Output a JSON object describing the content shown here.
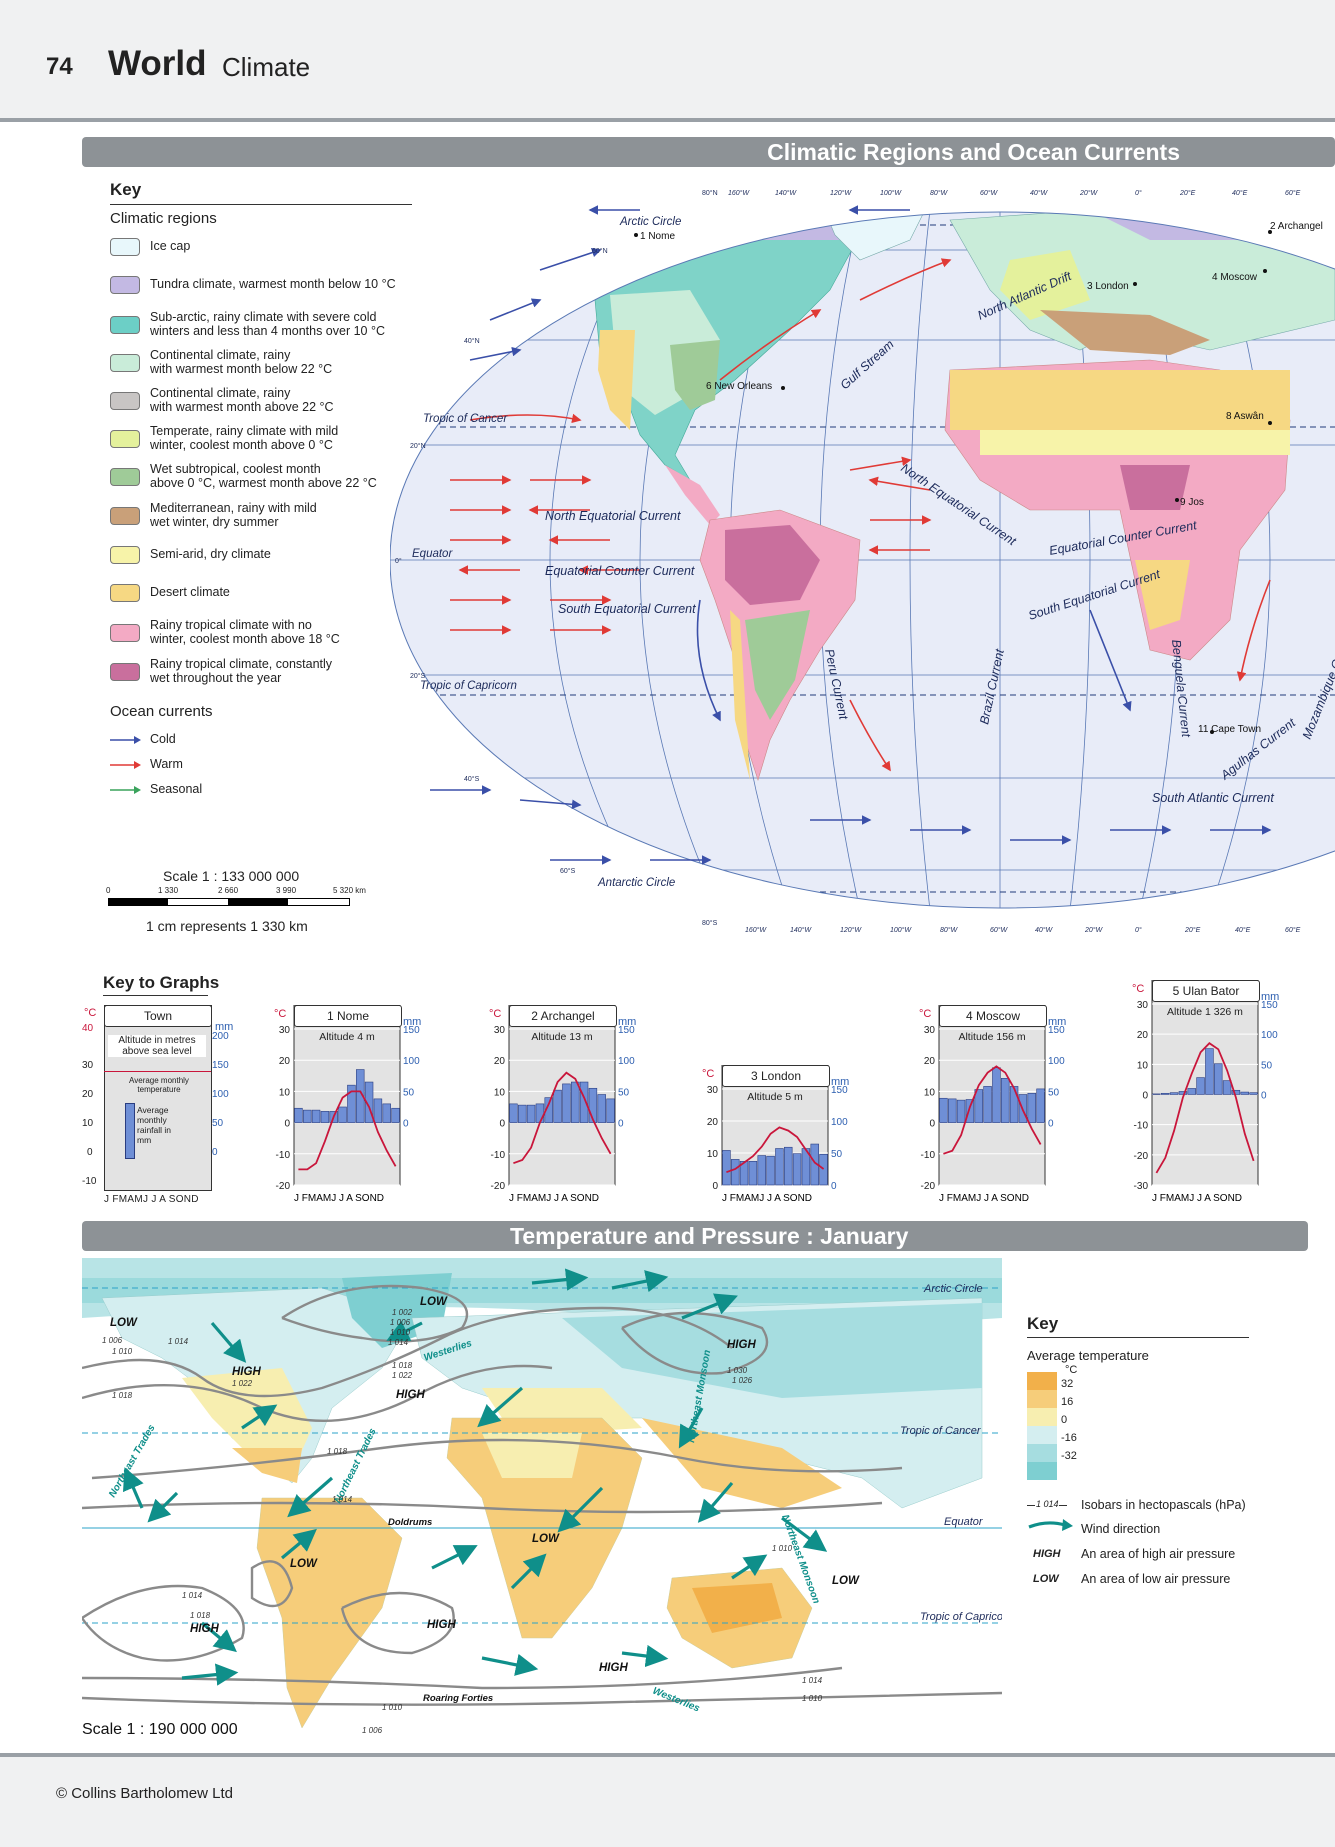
{
  "header": {
    "page_number": "74",
    "title": "World",
    "subtitle": "Climate"
  },
  "section1": {
    "title": "Climatic Regions and Ocean Currents"
  },
  "key": {
    "heading": "Key",
    "regions_heading": "Climatic regions",
    "regions": [
      {
        "label": "Ice cap",
        "color": "#e8f7fb"
      },
      {
        "label": "Tundra climate, warmest month below 10 °C",
        "color": "#c3b9e3"
      },
      {
        "label": "Sub-arctic, rainy climate with severe cold\nwinters and less than 4 months over 10 °C",
        "color": "#6ccfc6"
      },
      {
        "label": "Continental climate, rainy\nwith warmest month below 22 °C",
        "color": "#c9ecd9"
      },
      {
        "label": "Continental climate, rainy\nwith warmest month above 22 °C",
        "color": "#c8c5c4"
      },
      {
        "label": "Temperate, rainy climate with mild\nwinter, coolest month above 0 °C",
        "color": "#e4f19c"
      },
      {
        "label": "Wet subtropical, coolest month\nabove 0 °C, warmest month above 22 °C",
        "color": "#9fcb98"
      },
      {
        "label": "Mediterranean, rainy with mild\nwet winter, dry summer",
        "color": "#c9a079"
      },
      {
        "label": "Semi-arid, dry climate",
        "color": "#f7f3a9"
      },
      {
        "label": "Desert climate",
        "color": "#f6d883"
      },
      {
        "label": "Rainy tropical climate with no\nwinter, coolest month above 18 °C",
        "color": "#f3aac4"
      },
      {
        "label": "Rainy tropical climate, constantly\nwet throughout the year",
        "color": "#c96f9d"
      }
    ],
    "currents_heading": "Ocean currents",
    "currents": [
      {
        "label": "Cold",
        "color": "#3a4fa8"
      },
      {
        "label": "Warm",
        "color": "#e03a36"
      },
      {
        "label": "Seasonal",
        "color": "#3aa35c"
      }
    ]
  },
  "scale1": {
    "ratio": "Scale 1 : 133 000 000",
    "ticks": [
      "0",
      "1 330",
      "2 660",
      "3 990",
      "5 320 km"
    ],
    "note": "1 cm represents 1 330 km"
  },
  "map1": {
    "lines": [
      "Arctic Circle",
      "Tropic of Cancer",
      "Equator",
      "Tropic of Capricorn",
      "Antarctic Circle"
    ],
    "lat_labels": [
      "80°N",
      "60°N",
      "40°N",
      "20°N",
      "0°",
      "20°S",
      "40°S",
      "60°S",
      "80°S"
    ],
    "lon_labels": [
      "160°W",
      "140°W",
      "120°W",
      "100°W",
      "80°W",
      "60°W",
      "40°W",
      "20°W",
      "0°",
      "20°E",
      "40°E",
      "60°E"
    ],
    "currents": [
      "North Atlantic Drift",
      "Gulf Stream",
      "North Equatorial Current",
      "North Equatorial Current",
      "Equatorial Counter Current",
      "South Equatorial Current",
      "Equatorial Counter Current",
      "South Equatorial Current",
      "Peru Current",
      "Brazil Current",
      "Benguela Current",
      "Agulhas Current",
      "Mozambique Current",
      "South Atlantic Current"
    ],
    "cities": [
      "1 Nome",
      "2 Archangel",
      "3 London",
      "4 Moscow",
      "6 New Orleans",
      "8 Aswân",
      "9 Jos",
      "11 Cape Town"
    ]
  },
  "graphs_key": {
    "heading": "Key to Graphs",
    "box_title": "Town",
    "altitude_text": "Altitude in metres above sea level",
    "temp_label": "Average monthly temperature",
    "rain_label": "Average monthly rainfall in mm",
    "unit_c": "°C",
    "unit_mm": "mm",
    "c_ticks": [
      "40",
      "30",
      "20",
      "10",
      "0",
      "-10"
    ],
    "mm_ticks": [
      "200",
      "150",
      "100",
      "50",
      "0"
    ],
    "months": "J FMAMJ J A SOND"
  },
  "climate_graphs": [
    {
      "name": "1 Nome",
      "altitude": "Altitude 4 m",
      "c_ticks": [
        "30",
        "20",
        "10",
        "0",
        "-10",
        "-20"
      ],
      "mm_ticks": [
        "150",
        "100",
        "50",
        "0"
      ],
      "cmax": 30,
      "cmin": -20,
      "mmmax": 150,
      "temp": [
        -15,
        -15,
        -13,
        -6,
        2,
        8,
        10,
        10,
        5,
        -3,
        -9,
        -14
      ],
      "rain": [
        23,
        20,
        20,
        18,
        18,
        25,
        60,
        85,
        65,
        38,
        30,
        23
      ]
    },
    {
      "name": "2 Archangel",
      "altitude": "Altitude 13 m",
      "c_ticks": [
        "30",
        "20",
        "10",
        "0",
        "-10",
        "-20"
      ],
      "mm_ticks": [
        "150",
        "100",
        "50",
        "0"
      ],
      "cmax": 30,
      "cmin": -20,
      "mmmax": 150,
      "temp": [
        -13,
        -12,
        -8,
        0,
        6,
        13,
        16,
        14,
        8,
        1,
        -5,
        -10
      ],
      "rain": [
        30,
        28,
        28,
        30,
        40,
        52,
        62,
        65,
        65,
        55,
        45,
        38
      ]
    },
    {
      "name": "3 London",
      "altitude": "Altitude 5 m",
      "c_ticks": [
        "30",
        "20",
        "10",
        "0"
      ],
      "mm_ticks": [
        "150",
        "100",
        "50",
        "0"
      ],
      "cmax": 30,
      "cmin": 0,
      "mmmax": 150,
      "temp": [
        4,
        5,
        7,
        9,
        12,
        16,
        18,
        17,
        15,
        11,
        7,
        5
      ],
      "rain": [
        54,
        40,
        37,
        37,
        46,
        45,
        57,
        59,
        49,
        57,
        64,
        48
      ]
    },
    {
      "name": "4 Moscow",
      "altitude": "Altitude 156 m",
      "c_ticks": [
        "30",
        "20",
        "10",
        "0",
        "-10",
        "-20"
      ],
      "mm_ticks": [
        "150",
        "100",
        "50",
        "0"
      ],
      "cmax": 30,
      "cmin": -20,
      "mmmax": 150,
      "temp": [
        -10,
        -9,
        -4,
        5,
        12,
        16,
        18,
        16,
        11,
        4,
        -2,
        -7
      ],
      "rain": [
        39,
        38,
        36,
        37,
        53,
        58,
        88,
        71,
        58,
        45,
        47,
        54
      ]
    },
    {
      "name": "5 Ulan Bator",
      "altitude": "Altitude 1 326 m",
      "c_ticks": [
        "30",
        "20",
        "10",
        "0",
        "-10",
        "-20",
        "-30"
      ],
      "mm_ticks": [
        "150",
        "100",
        "50",
        "0"
      ],
      "cmax": 30,
      "cmin": -30,
      "mmmax": 150,
      "temp": [
        -26,
        -21,
        -12,
        -1,
        7,
        14,
        17,
        15,
        8,
        -1,
        -13,
        -22
      ],
      "rain": [
        1,
        2,
        3,
        5,
        10,
        28,
        76,
        51,
        23,
        7,
        4,
        3
      ]
    }
  ],
  "section2": {
    "title": "Temperature and Pressure : January"
  },
  "map2": {
    "lines": [
      "Arctic Circle",
      "Tropic of Cancer",
      "Equator",
      "Tropic of\nCapricorn"
    ],
    "pressure": [
      "LOW",
      "HIGH",
      "LOW",
      "HIGH",
      "HIGH",
      "LOW",
      "LOW",
      "HIGH",
      "HIGH",
      "LOW",
      "HIGH"
    ],
    "winds": [
      "Westerlies",
      "Northeast Trades",
      "Northeast Trades",
      "Northeast Monsoon",
      "Northeast Monsoon",
      "Doldrums",
      "Roaring Forties",
      "Westerlies"
    ],
    "isobars": [
      "1 002",
      "1 006",
      "1 010",
      "1 014",
      "1 018",
      "1 022",
      "1 026",
      "1 030",
      "1 006",
      "1 010",
      "1 014",
      "1 018",
      "1 022",
      "1 018",
      "1 014",
      "1 010",
      "1 018",
      "1 014",
      "1 010",
      "1 006",
      "1 010",
      "1 014"
    ],
    "scale": "Scale 1 : 190 000 000"
  },
  "key2": {
    "heading": "Key",
    "temp_heading": "Average temperature",
    "unit": "°C",
    "temp_ticks": [
      "32",
      "16",
      "0",
      "-16",
      "-32"
    ],
    "temp_colors": [
      "#f2b04a",
      "#f6cd7a",
      "#f7eeb0",
      "#d4eef0",
      "#a6dde0",
      "#7ecfd1"
    ],
    "isobar_sample": "1 014",
    "isobar_label": "Isobars in hectopascals (hPa)",
    "wind_label": "Wind direction",
    "high_tag": "HIGH",
    "high_label": "An area of high air pressure",
    "low_tag": "LOW",
    "low_label": "An area of low air pressure"
  },
  "footer": {
    "copyright": "© Collins Bartholomew Ltd"
  }
}
